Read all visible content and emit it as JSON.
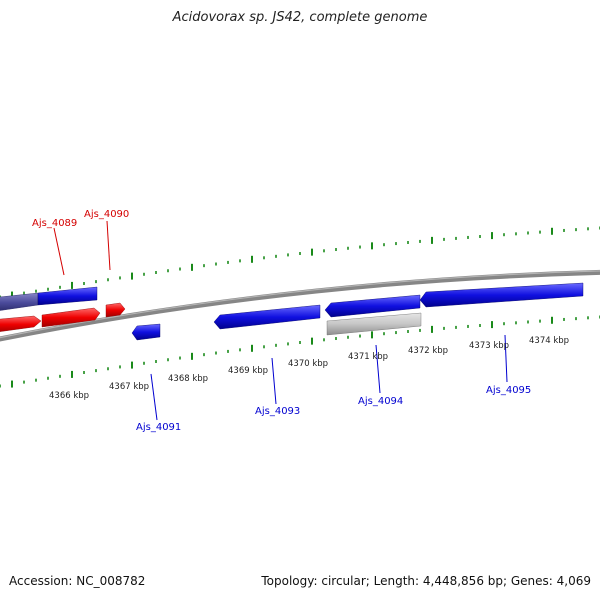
{
  "title": "Acidovorax sp. JS42, complete genome",
  "footer": {
    "accession": "Accession: NC_008782",
    "summary": "Topology: circular; Length: 4,448,856 bp; Genes: 4,069"
  },
  "colors": {
    "forward": "#d40000",
    "reverse": "#0000d0",
    "other": "#b8b8b8",
    "highlight": "#4a4a9a",
    "tick": "#1a8a1a",
    "backbone": "#808080"
  },
  "scale_labels": [
    "4366 kbp",
    "4367 kbp",
    "4368 kbp",
    "4369 kbp",
    "4370 kbp",
    "4371 kbp",
    "4372 kbp",
    "4373 kbp",
    "4374 kbp"
  ],
  "gene_labels": {
    "top": [
      "Ajs_4089",
      "Ajs_4090"
    ],
    "bottom": [
      "Ajs_4091",
      "Ajs_4093",
      "Ajs_4094",
      "Ajs_4095"
    ]
  }
}
